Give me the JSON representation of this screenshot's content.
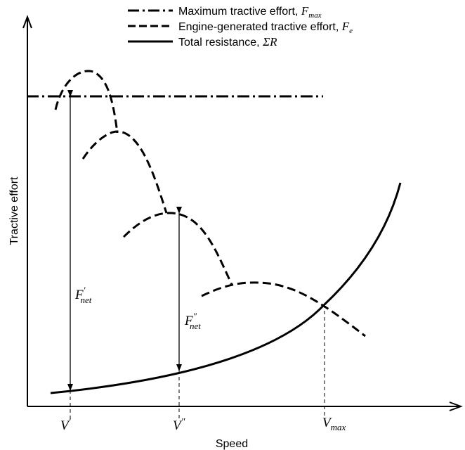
{
  "chart_data": {
    "type": "line",
    "xlabel": "Speed",
    "ylabel": "Tractive effort",
    "legend_position": "top",
    "legend": [
      {
        "name": "Maximum tractive effort, ",
        "symbol": "F",
        "sub": "max",
        "style": "dash-dot"
      },
      {
        "name": "Engine-generated tractive effort, ",
        "symbol": "F",
        "sub": "e",
        "style": "dashed"
      },
      {
        "name": "Total resistance, ",
        "symbol": "ΣR",
        "sub": "",
        "style": "solid"
      }
    ],
    "x_ticks": [
      {
        "symbol": "V",
        "sup": "′",
        "sub": ""
      },
      {
        "symbol": "V",
        "sup": "″",
        "sub": ""
      },
      {
        "symbol": "V",
        "sup": "",
        "sub": "max"
      }
    ],
    "annotations": [
      {
        "symbol": "F",
        "sup": "′",
        "sub": "net"
      },
      {
        "symbol": "F",
        "sup": "″",
        "sub": "net"
      }
    ],
    "grid": false
  }
}
